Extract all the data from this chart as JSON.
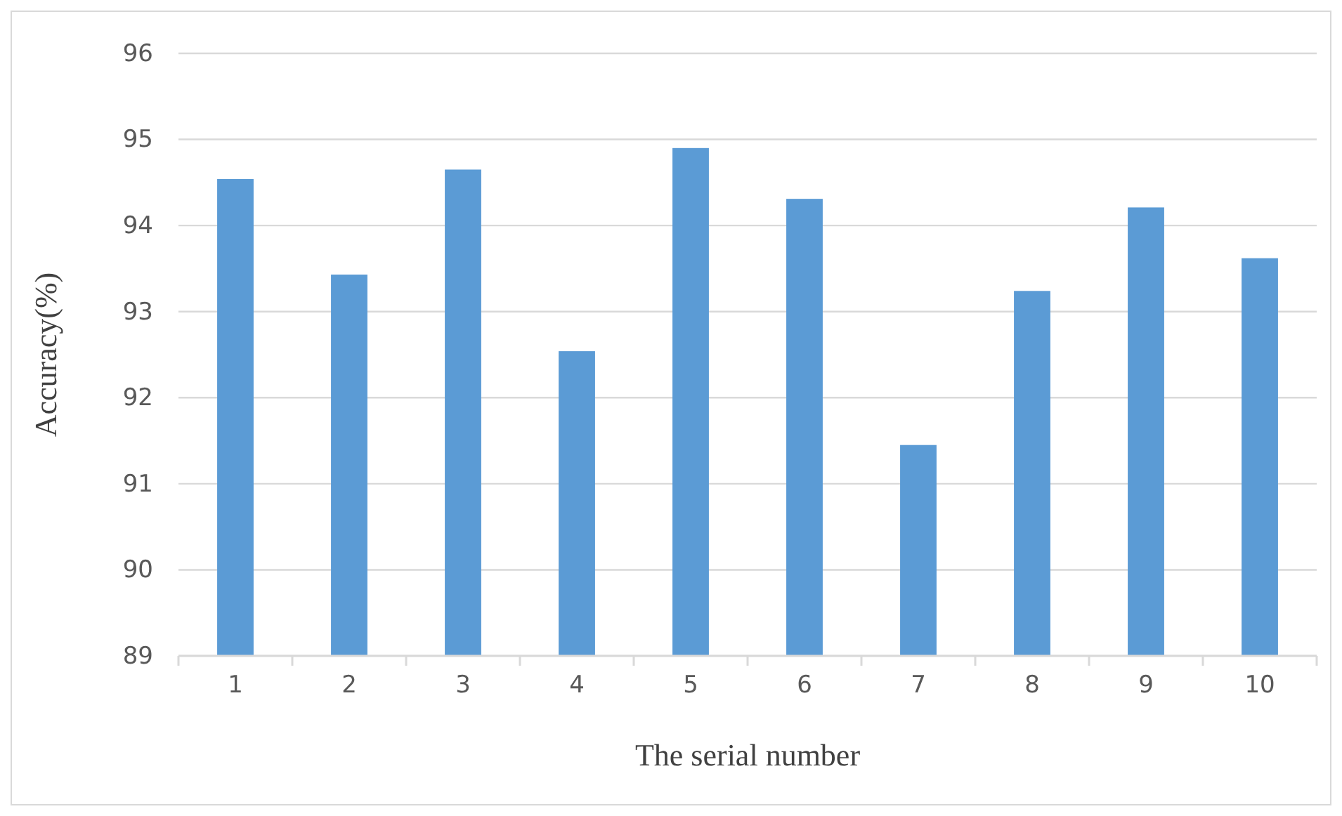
{
  "chart_data": {
    "type": "bar",
    "xlabel": "The serial number",
    "ylabel": "Accuracy(%)",
    "categories": [
      "1",
      "2",
      "3",
      "4",
      "5",
      "6",
      "7",
      "8",
      "9",
      "10"
    ],
    "values": [
      94.54,
      93.43,
      94.65,
      92.54,
      94.9,
      94.31,
      91.45,
      93.24,
      94.21,
      93.62
    ],
    "color": "#5b9bd5",
    "ylim": [
      89,
      96
    ],
    "yticks": [
      89,
      90,
      91,
      92,
      93,
      94,
      95,
      96
    ],
    "grid": "y"
  }
}
